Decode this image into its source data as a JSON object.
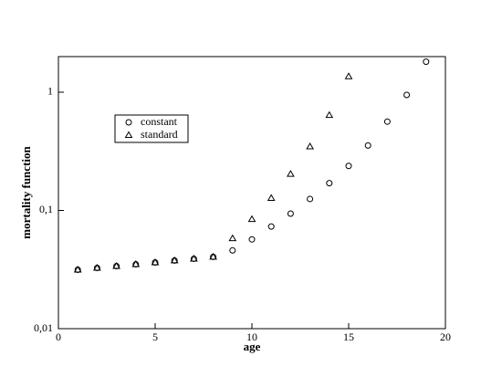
{
  "chart_data": {
    "type": "scatter",
    "xlabel": "age",
    "ylabel": "mortality function",
    "xlim": [
      0,
      20
    ],
    "xticks": [
      0,
      5,
      10,
      15,
      20
    ],
    "ylim": [
      0.01,
      2
    ],
    "yscale": "log",
    "yticks": [
      {
        "value": 0.01,
        "label": "0,01"
      },
      {
        "value": 0.1,
        "label": "0,1"
      },
      1
    ],
    "legend": "upper left",
    "series": [
      {
        "name": "constant",
        "color": "#000000",
        "marker": "circle",
        "x": [
          1,
          2,
          3,
          4,
          5,
          6,
          7,
          8,
          9,
          10,
          11,
          12,
          13,
          14,
          15,
          16,
          17,
          18,
          19
        ],
        "values": [
          0.0315,
          0.0326,
          0.0338,
          0.035,
          0.0363,
          0.0377,
          0.039,
          0.0405,
          0.0459,
          0.0569,
          0.0731,
          0.094,
          0.125,
          0.17,
          0.238,
          0.354,
          0.564,
          0.948,
          1.81
        ]
      },
      {
        "name": "standard",
        "color": "#000000",
        "marker": "triangle",
        "x": [
          1,
          2,
          3,
          4,
          5,
          6,
          7,
          8,
          9,
          10,
          11,
          12,
          13,
          14,
          15
        ],
        "values": [
          0.0315,
          0.0326,
          0.0338,
          0.035,
          0.0363,
          0.0377,
          0.039,
          0.0405,
          0.058,
          0.0843,
          0.127,
          0.203,
          0.347,
          0.639,
          1.36
        ]
      }
    ]
  }
}
